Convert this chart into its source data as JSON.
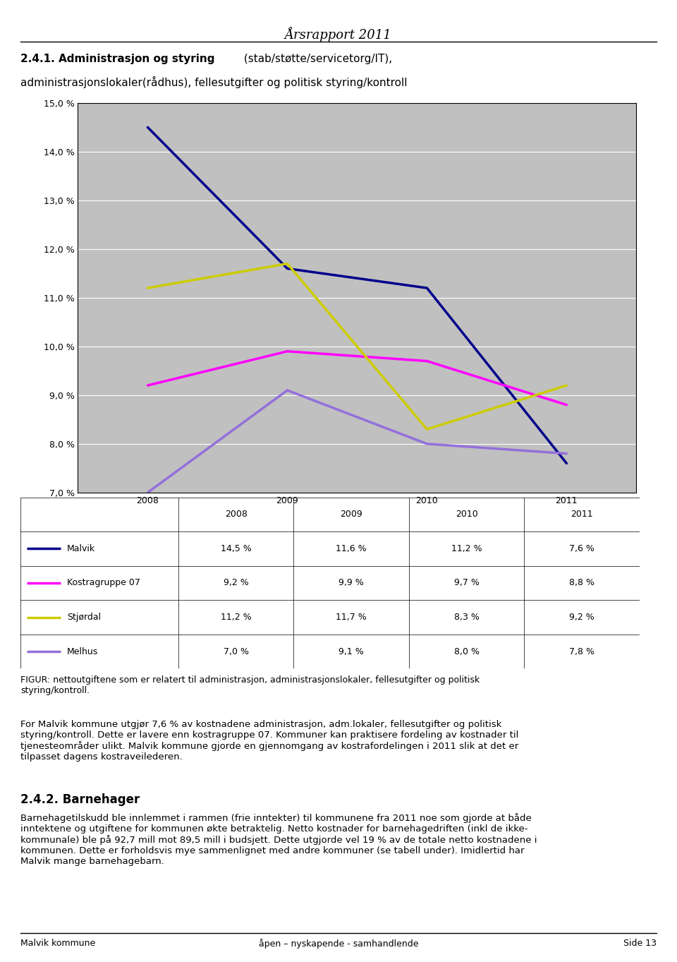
{
  "page_title": "Årsrapport 2011",
  "line1_bold": "2.4.1. Administrasjon og styring",
  "line1_normal": " (stab/støtte/servicetorg/IT),",
  "line2": "administrasjonslokaler(rådhus), fellesutgifter og politisk styring/kontroll",
  "years": [
    2008,
    2009,
    2010,
    2011
  ],
  "series": [
    {
      "name": "Malvik",
      "color": "#00008B",
      "values": [
        14.5,
        11.6,
        11.2,
        7.6
      ]
    },
    {
      "name": "Kostragruppe 07",
      "color": "#FF00FF",
      "values": [
        9.2,
        9.9,
        9.7,
        8.8
      ]
    },
    {
      "name": "Stjørdal",
      "color": "#CCCC00",
      "values": [
        11.2,
        11.7,
        8.3,
        9.2
      ]
    },
    {
      "name": "Melhus",
      "color": "#9370DB",
      "values": [
        7.0,
        9.1,
        8.0,
        7.8
      ]
    }
  ],
  "ylim": [
    7.0,
    15.0
  ],
  "yticks": [
    7.0,
    8.0,
    9.0,
    10.0,
    11.0,
    12.0,
    13.0,
    14.0,
    15.0
  ],
  "chart_bg": "#C0C0C0",
  "figure_caption": "FIGUR: nettoutgiftene som er relatert til administrasjon, administrasjonslokaler, fellesutgifter og politisk\nstyring/kontroll.",
  "para1": "For Malvik kommune utgjør 7,6 % av kostnadene administrasjon, adm.lokaler, fellesutgifter og politisk\nstyring/kontroll. Dette er lavere enn kostragruppe 07. Kommuner kan praktisere fordeling av kostnader til\ntjenesteområder ulikt. Malvik kommune gjorde en gjennomgang av kostrafordelingen i 2011 slik at det er\ntilpasset dagens kostraveilederen.",
  "section2_title": "2.4.2. Barnehager",
  "para2": "Barnehagetilskudd ble innlemmet i rammen (frie inntekter) til kommunene fra 2011 noe som gjorde at både\ninntektene og utgiftene for kommunen økte betraktelig. Netto kostnader for barnehagedriften (inkl de ikke-\nkommunale) ble på 92,7 mill mot 89,5 mill i budsjett. Dette utgjorde vel 19 % av de totale netto kostnadene i\nkommunen. Dette er forholdsvis mye sammenlignet med andre kommuner (se tabell under). Imidlertid har\nMalvik mange barnehagebarn.",
  "footer_left": "Malvik kommune",
  "footer_center": "åpen – nyskapende - samhandlende",
  "footer_right": "Side 13",
  "line_width": 2.5
}
